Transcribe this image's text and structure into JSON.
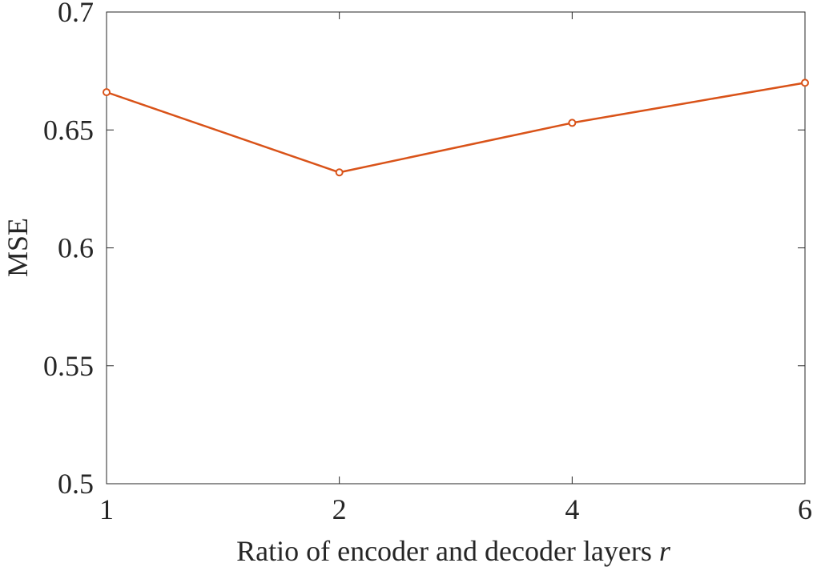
{
  "chart_data": {
    "type": "line",
    "x_categories": [
      "1",
      "2",
      "4",
      "6"
    ],
    "series": [
      {
        "values": [
          0.666,
          0.632,
          0.653,
          0.67
        ]
      }
    ],
    "ylim": [
      0.5,
      0.7
    ],
    "yticks": [
      0.5,
      0.55,
      0.6,
      0.65,
      0.7
    ],
    "ytick_labels": [
      "0.5",
      "0.55",
      "0.6",
      "0.65",
      "0.7"
    ],
    "xlabel": "Ratio of encoder and decoder layers",
    "xlabel_var": "r",
    "ylabel": "MSE",
    "grid": false,
    "legend": false,
    "colors": {
      "line": "#D95319",
      "axis": "#262626"
    }
  }
}
